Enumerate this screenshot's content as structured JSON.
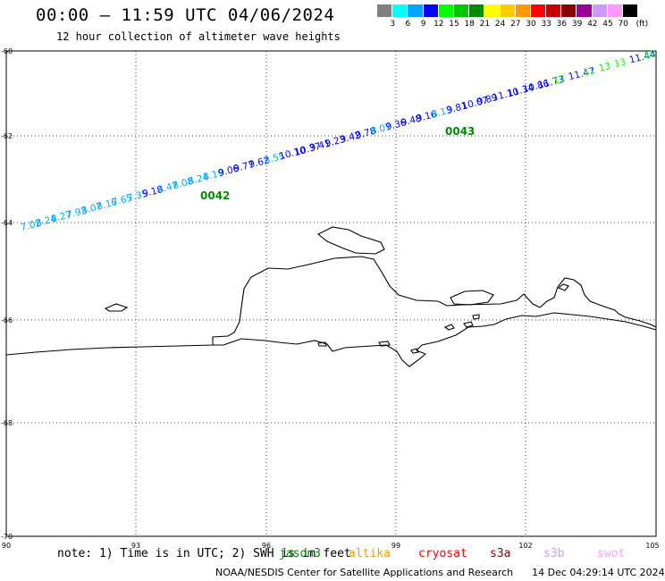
{
  "header": {
    "title": "00:00 – 11:59 UTC 04/06/2024",
    "subtitle": "12 hour collection of altimeter wave heights"
  },
  "colorbar": {
    "colors": [
      "#808080",
      "#00ffff",
      "#00a5ff",
      "#0000ff",
      "#00ff00",
      "#00c800",
      "#008c00",
      "#ffff00",
      "#ffcc00",
      "#ff9900",
      "#ff0000",
      "#c80000",
      "#8b0000",
      "#990099",
      "#cc99ff",
      "#ff99ff",
      "#000000"
    ],
    "labels": [
      "3",
      "6",
      "9",
      "12",
      "15",
      "18",
      "21",
      "24",
      "27",
      "30",
      "33",
      "36",
      "39",
      "42",
      "45",
      "70",
      "(ft)"
    ]
  },
  "map": {
    "lon_ticks": [
      "90",
      "93",
      "96",
      "99",
      "102",
      "105"
    ],
    "lat_ticks": [
      "-60",
      "-62",
      "-64",
      "-66",
      "-68",
      "-70"
    ],
    "track_ids": [
      {
        "id": "0042",
        "color": "#008c00"
      },
      {
        "id": "0043",
        "color": "#008c00"
      }
    ],
    "wave_labels": [
      {
        "t": "7.02",
        "c": "#00a5ff"
      },
      {
        "t": "8.24",
        "c": "#00a5ff"
      },
      {
        "t": "8.27",
        "c": "#00a5ff"
      },
      {
        "t": "7.93",
        "c": "#00a5ff"
      },
      {
        "t": "8.07",
        "c": "#00a5ff"
      },
      {
        "t": "8.16",
        "c": "#00a5ff"
      },
      {
        "t": "7.65",
        "c": "#00a5ff"
      },
      {
        "t": "7.35",
        "c": "#00a5ff"
      },
      {
        "t": "9.18",
        "c": "#0000ff"
      },
      {
        "t": "8.47",
        "c": "#00a5ff"
      },
      {
        "t": "8.08",
        "c": "#00a5ff"
      },
      {
        "t": "8.24",
        "c": "#00a5ff"
      },
      {
        "t": "8.19",
        "c": "#00a5ff"
      },
      {
        "t": "9.06",
        "c": "#0000ff"
      },
      {
        "t": "9.77",
        "c": "#0000ff"
      },
      {
        "t": "9.62",
        "c": "#0000ff"
      },
      {
        "t": "8.55",
        "c": "#00a5ff"
      },
      {
        "t": "10.10",
        "c": "#0000ff"
      },
      {
        "t": "10.37",
        "c": "#0000ff"
      },
      {
        "t": "9.41",
        "c": "#0000ff"
      },
      {
        "t": "9.23",
        "c": "#0000ff"
      },
      {
        "t": "9.42",
        "c": "#0000ff"
      },
      {
        "t": "9.78",
        "c": "#0000ff"
      },
      {
        "t": "8.07",
        "c": "#00a5ff"
      },
      {
        "t": "9.36",
        "c": "#0000ff"
      },
      {
        "t": "9.48",
        "c": "#0000ff"
      },
      {
        "t": "9.16",
        "c": "#0000ff"
      },
      {
        "t": "8.13",
        "c": "#00a5ff"
      },
      {
        "t": "9.81",
        "c": "#0000ff"
      },
      {
        "t": "10.07",
        "c": "#0000ff"
      },
      {
        "t": "9.89",
        "c": "#0000ff"
      },
      {
        "t": "11.10",
        "c": "#0000ff"
      },
      {
        "t": "11.34",
        "c": "#0000ff"
      },
      {
        "t": "10.86",
        "c": "#0000ff"
      },
      {
        "t": "11.73",
        "c": "#0000ff"
      },
      {
        "t": "12",
        "c": "#00ff00"
      },
      {
        "t": "11.47",
        "c": "#0000ff"
      },
      {
        "t": "12",
        "c": "#00ff00"
      },
      {
        "t": "13",
        "c": "#00ff00"
      },
      {
        "t": "13",
        "c": "#00ff00"
      },
      {
        "t": "11.44",
        "c": "#0000ff"
      },
      {
        "t": "12",
        "c": "#00ff00"
      }
    ]
  },
  "footer": {
    "note": "note: 1) Time is in UTC; 2) SWH is in feet",
    "satellites": [
      {
        "name": "jason3",
        "color": "#008c00"
      },
      {
        "name": "altika",
        "color": "#ff9900"
      },
      {
        "name": "cryosat",
        "color": "#ff0000"
      },
      {
        "name": "s3a",
        "color": "#8b0000"
      },
      {
        "name": "s3b",
        "color": "#cc99ff"
      },
      {
        "name": "swot",
        "color": "#ff99ff"
      }
    ],
    "credit": "NOAA/NESDIS Center for Satellite Applications and Research",
    "timestamp": "14 Dec 04:29:14 UTC 2024"
  }
}
